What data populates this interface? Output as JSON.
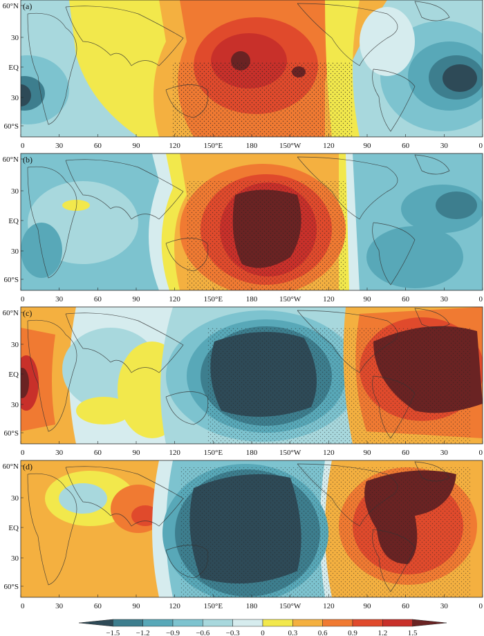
{
  "panels": [
    {
      "label": "(a)",
      "pattern": "a"
    },
    {
      "label": "(b)",
      "pattern": "b"
    },
    {
      "label": "(c)",
      "pattern": "c"
    },
    {
      "label": "(d)",
      "pattern": "d"
    }
  ],
  "lat_labels": [
    "60°N",
    "30",
    "EQ",
    "30",
    "60°S"
  ],
  "lon_labels": [
    "0",
    "30",
    "60",
    "90",
    "120",
    "150°E",
    "180",
    "150°W",
    "120",
    "90",
    "60",
    "30",
    "0"
  ],
  "colorbar": {
    "ticks": [
      "-1.5",
      "-1.2",
      "-0.9",
      "-0.6",
      "-0.3",
      "0",
      "0.3",
      "0.6",
      "0.9",
      "1.2",
      "1.5"
    ],
    "colors": [
      "#2e4a57",
      "#3d7e8e",
      "#58a8b8",
      "#7dc3cf",
      "#a8d8dd",
      "#d6ecee",
      "#f2e84c",
      "#f4b040",
      "#f07a32",
      "#e04a2c",
      "#c8302a",
      "#6a2323"
    ]
  }
}
